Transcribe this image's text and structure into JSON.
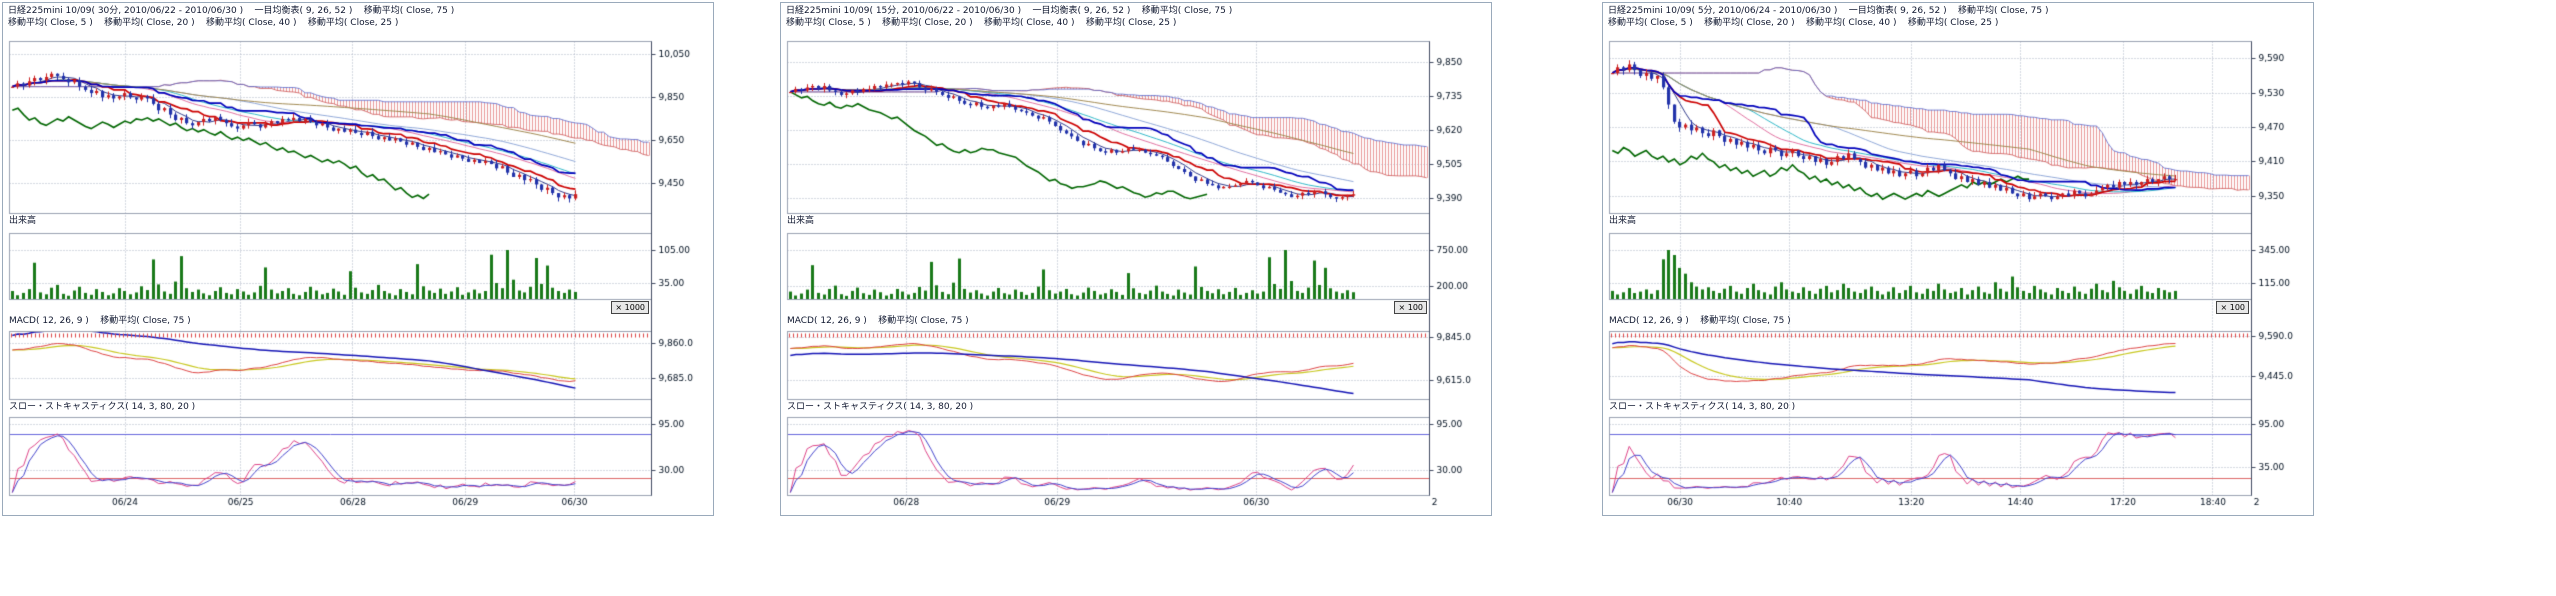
{
  "window": {
    "background": "#ffffff"
  },
  "colors": {
    "candle_up": "#cc2222",
    "candle_down": "#2233aa",
    "volume": "#1a7a1a",
    "cloud": "#e89898",
    "span_a": "#cc5555",
    "span_b": "#5566cc",
    "tenkan": "#cc0000",
    "kijun": "#0000bb",
    "chikou": "#006600",
    "ma5": "#303a8a",
    "ma20": "#e070a0",
    "ma40": "#90a8d8",
    "ma25": "#30b8c8",
    "ma75": "#a08850",
    "macd": "#dd4444",
    "signal": "#c8c820",
    "ma75_macd": "#1515b5",
    "stoch_k": "#dd4488",
    "stoch_d": "#4444cc",
    "ref_high": "#6666dd",
    "ref_low": "#dd6666",
    "grid": "#a8b0c0",
    "frame": "#98a0b0",
    "axis": "#404a60",
    "text": "#001020"
  },
  "chart_data": [
    {
      "type": "candlestick",
      "title": "日経225mini 10/09( 30分, 2010/06/22 - 2010/06/30 )    一目均衡表( 9, 26, 52 )    移動平均( Close, 75 )",
      "subtitle": "移動平均( Close, 5 )    移動平均( Close, 20 )    移動平均( Close, 40 )    移動平均( Close, 25 )",
      "volume_label": "出来高",
      "macd_label": "MACD( 12, 26, 9 )    移動平均( Close, 75 )",
      "stoch_label": "スロー・ストキャスティクス( 14, 3, 80, 20 )",
      "volume_unit": "× 1000",
      "ichimoku": [
        9,
        26,
        52
      ],
      "ma_periods": [
        5,
        20,
        40,
        25,
        75
      ],
      "macd_params": [
        12,
        26,
        9
      ],
      "stoch_params": [
        14,
        3,
        80,
        20
      ],
      "wick": 20,
      "price_axis": {
        "labels": [
          "10,050",
          "9,850",
          "9,650",
          "9,450"
        ],
        "values": [
          10050,
          9850,
          9650,
          9450
        ],
        "range": [
          9310,
          10110
        ]
      },
      "volume_axis": {
        "labels": [
          "105.00",
          "35.00"
        ],
        "values": [
          105,
          35
        ],
        "range": [
          0,
          140
        ]
      },
      "macd_axis": {
        "labels": [
          "9,860.0",
          "9,685.0"
        ],
        "values": [
          9860,
          9685
        ],
        "range": [
          9580,
          9920
        ]
      },
      "stoch_axis": {
        "labels": [
          "95.00",
          "30.00"
        ],
        "values": [
          95,
          30
        ]
      },
      "x_axis": {
        "labels": [
          {
            "text": "06/24",
            "f": 0.18
          },
          {
            "text": "06/25",
            "f": 0.36
          },
          {
            "text": "06/28",
            "f": 0.535
          },
          {
            "text": "06/29",
            "f": 0.71
          },
          {
            "text": "06/30",
            "f": 0.88
          }
        ]
      },
      "closes": [
        9900,
        9915,
        9905,
        9925,
        9940,
        9930,
        9945,
        9960,
        9950,
        9935,
        9920,
        9930,
        9900,
        9885,
        9870,
        9880,
        9850,
        9860,
        9845,
        9855,
        9870,
        9850,
        9840,
        9855,
        9845,
        9820,
        9790,
        9800,
        9770,
        9745,
        9755,
        9730,
        9720,
        9735,
        9750,
        9740,
        9760,
        9745,
        9730,
        9715,
        9705,
        9720,
        9735,
        9725,
        9710,
        9725,
        9740,
        9730,
        9750,
        9745,
        9755,
        9740,
        9750,
        9735,
        9720,
        9730,
        9710,
        9695,
        9705,
        9690,
        9700,
        9685,
        9675,
        9690,
        9670,
        9655,
        9665,
        9650,
        9660,
        9645,
        9630,
        9640,
        9620,
        9605,
        9615,
        9595,
        9600,
        9585,
        9570,
        9580,
        9565,
        9550,
        9560,
        9545,
        9555,
        9540,
        9520,
        9530,
        9500,
        9480,
        9490,
        9465,
        9470,
        9445,
        9420,
        9430,
        9405,
        9385,
        9395,
        9380,
        9400
      ],
      "volumes": [
        18,
        9,
        14,
        22,
        78,
        15,
        11,
        25,
        31,
        12,
        8,
        19,
        27,
        14,
        10,
        22,
        16,
        9,
        13,
        24,
        18,
        11,
        15,
        28,
        20,
        85,
        32,
        17,
        12,
        38,
        92,
        24,
        16,
        21,
        13,
        9,
        18,
        26,
        14,
        11,
        22,
        17,
        10,
        15,
        29,
        68,
        21,
        13,
        18,
        24,
        12,
        9,
        16,
        27,
        19,
        11,
        14,
        23,
        17,
        10,
        60,
        25,
        15,
        12,
        20,
        31,
        18,
        13,
        9,
        22,
        16,
        11,
        75,
        28,
        19,
        14,
        23,
        12,
        17,
        26,
        10,
        15,
        21,
        13,
        18,
        95,
        35,
        24,
        105,
        42,
        19,
        15,
        27,
        88,
        33,
        72,
        25,
        18,
        14,
        21,
        16
      ]
    },
    {
      "type": "candlestick",
      "title": "日経225mini 10/09( 15分, 2010/06/22 - 2010/06/30 )    一目均衡表( 9, 26, 52 )    移動平均( Close, 75 )",
      "subtitle": "移動平均( Close, 5 )    移動平均( Close, 20 )    移動平均( Close, 40 )    移動平均( Close, 25 )",
      "volume_label": "出来高",
      "macd_label": "MACD( 12, 26, 9 )    移動平均( Close, 75 )",
      "stoch_label": "スロー・ストキャスティクス( 14, 3, 80, 20 )",
      "volume_unit": "× 100",
      "ichimoku": [
        9,
        26,
        52
      ],
      "ma_periods": [
        5,
        20,
        40,
        25,
        75
      ],
      "macd_params": [
        12,
        26,
        9
      ],
      "stoch_params": [
        14,
        3,
        80,
        20
      ],
      "wick": 12,
      "price_axis": {
        "labels": [
          "9,850",
          "9,735",
          "9,620",
          "9,505",
          "9,390"
        ],
        "values": [
          9850,
          9735,
          9620,
          9505,
          9390
        ],
        "range": [
          9340,
          9920
        ]
      },
      "volume_axis": {
        "labels": [
          "750.00",
          "200.00"
        ],
        "values": [
          750,
          200
        ],
        "range": [
          0,
          1000
        ]
      },
      "macd_axis": {
        "labels": [
          "9,845.0",
          "9,615.0"
        ],
        "values": [
          9845,
          9615
        ],
        "range": [
          9510,
          9880
        ]
      },
      "stoch_axis": {
        "labels": [
          "95.00",
          "30.00"
        ],
        "values": [
          95,
          30
        ]
      },
      "x_axis": {
        "labels": [
          {
            "text": "06/28",
            "f": 0.185
          },
          {
            "text": "06/29",
            "f": 0.42
          },
          {
            "text": "06/30",
            "f": 0.73
          },
          {
            "text": "2",
            "f": 1.008
          }
        ]
      },
      "closes": [
        9750,
        9760,
        9755,
        9765,
        9770,
        9760,
        9770,
        9755,
        9750,
        9740,
        9745,
        9755,
        9750,
        9760,
        9760,
        9770,
        9765,
        9775,
        9775,
        9780,
        9775,
        9785,
        9780,
        9765,
        9755,
        9760,
        9750,
        9740,
        9730,
        9735,
        9720,
        9710,
        9705,
        9715,
        9700,
        9695,
        9705,
        9700,
        9710,
        9700,
        9690,
        9685,
        9680,
        9670,
        9660,
        9665,
        9650,
        9635,
        9620,
        9610,
        9600,
        9585,
        9570,
        9575,
        9560,
        9550,
        9545,
        9555,
        9545,
        9550,
        9560,
        9555,
        9555,
        9545,
        9540,
        9535,
        9530,
        9515,
        9500,
        9490,
        9480,
        9465,
        9450,
        9455,
        9440,
        9435,
        9425,
        9430,
        9430,
        9435,
        9440,
        9450,
        9445,
        9435,
        9425,
        9430,
        9420,
        9410,
        9405,
        9395,
        9400,
        9410,
        9405,
        9415,
        9415,
        9405,
        9395,
        9390,
        9395,
        9400,
        9405
      ],
      "volumes": [
        120,
        60,
        90,
        150,
        520,
        100,
        75,
        160,
        210,
        80,
        55,
        130,
        180,
        95,
        70,
        150,
        110,
        60,
        85,
        160,
        120,
        75,
        100,
        190,
        135,
        570,
        215,
        115,
        80,
        255,
        620,
        160,
        105,
        140,
        90,
        60,
        120,
        175,
        95,
        75,
        150,
        115,
        70,
        100,
        195,
        455,
        140,
        90,
        120,
        160,
        80,
        60,
        105,
        180,
        130,
        75,
        95,
        155,
        115,
        70,
        400,
        170,
        100,
        80,
        135,
        210,
        120,
        85,
        60,
        150,
        105,
        75,
        500,
        190,
        130,
        95,
        155,
        80,
        115,
        175,
        70,
        100,
        140,
        90,
        120,
        640,
        235,
        160,
        750,
        280,
        130,
        100,
        180,
        590,
        220,
        480,
        170,
        120,
        95,
        140,
        110
      ]
    },
    {
      "type": "candlestick",
      "title": "日経225mini 10/09( 5分, 2010/06/24 - 2010/06/30 )    一目均衡表( 9, 26, 52 )    移動平均( Close, 75 )",
      "subtitle": "移動平均( Close, 5 )    移動平均( Close, 20 )    移動平均( Close, 40 )    移動平均( Close, 25 )",
      "volume_label": "出来高",
      "macd_label": "MACD( 12, 26, 9 )    移動平均( Close, 75 )",
      "stoch_label": "スロー・ストキャスティクス( 14, 3, 80, 20 )",
      "volume_unit": "× 100",
      "ichimoku": [
        9,
        26,
        52
      ],
      "ma_periods": [
        5,
        20,
        40,
        25,
        75
      ],
      "macd_params": [
        12,
        26,
        9
      ],
      "stoch_params": [
        14,
        3,
        80,
        20
      ],
      "wick": 8,
      "price_axis": {
        "labels": [
          "9,590",
          "9,530",
          "9,470",
          "9,410",
          "9,350"
        ],
        "values": [
          9590,
          9530,
          9470,
          9410,
          9350
        ],
        "range": [
          9320,
          9620
        ]
      },
      "volume_axis": {
        "labels": [
          "345.00",
          "115.00"
        ],
        "values": [
          345,
          115
        ],
        "range": [
          0,
          460
        ]
      },
      "macd_axis": {
        "labels": [
          "9,590.0",
          "9,445.0"
        ],
        "values": [
          9590,
          9445
        ],
        "range": [
          9360,
          9610
        ]
      },
      "stoch_axis": {
        "labels": [
          "95.00",
          "35.00"
        ],
        "values": [
          95,
          35
        ]
      },
      "x_axis": {
        "labels": [
          {
            "text": "06/30",
            "f": 0.11
          },
          {
            "text": "10:40",
            "f": 0.28
          },
          {
            "text": "13:20",
            "f": 0.47
          },
          {
            "text": "14:40",
            "f": 0.64
          },
          {
            "text": "17:20",
            "f": 0.8
          },
          {
            "text": "18:40",
            "f": 0.94
          },
          {
            "text": "2",
            "f": 1.008
          }
        ]
      },
      "closes": [
        9565,
        9575,
        9570,
        9580,
        9570,
        9560,
        9565,
        9555,
        9560,
        9540,
        9510,
        9480,
        9470,
        9475,
        9465,
        9470,
        9460,
        9455,
        9465,
        9455,
        9445,
        9450,
        9440,
        9445,
        9435,
        9440,
        9430,
        9425,
        9435,
        9430,
        9420,
        9425,
        9430,
        9420,
        9415,
        9420,
        9410,
        9415,
        9405,
        9410,
        9420,
        9415,
        9425,
        9415,
        9410,
        9400,
        9405,
        9395,
        9400,
        9390,
        9395,
        9385,
        9390,
        9395,
        9385,
        9390,
        9400,
        9395,
        9405,
        9395,
        9390,
        9380,
        9385,
        9375,
        9380,
        9370,
        9375,
        9365,
        9370,
        9360,
        9365,
        9355,
        9350,
        9355,
        9345,
        9350,
        9355,
        9350,
        9345,
        9350,
        9355,
        9350,
        9360,
        9355,
        9350,
        9355,
        9360,
        9365,
        9370,
        9365,
        9375,
        9370,
        9375,
        9370,
        9375,
        9380,
        9375,
        9380,
        9385,
        9380,
        9380
      ],
      "volumes": [
        60,
        35,
        50,
        80,
        45,
        55,
        70,
        40,
        65,
        280,
        345,
        310,
        220,
        180,
        120,
        90,
        70,
        85,
        60,
        45,
        75,
        95,
        55,
        40,
        80,
        110,
        65,
        50,
        35,
        90,
        120,
        70,
        55,
        45,
        85,
        60,
        40,
        75,
        95,
        50,
        65,
        110,
        80,
        55,
        45,
        70,
        90,
        60,
        35,
        55,
        85,
        45,
        65,
        95,
        50,
        40,
        75,
        60,
        110,
        70,
        45,
        55,
        80,
        35,
        65,
        90,
        50,
        40,
        120,
        75,
        55,
        160,
        85,
        60,
        45,
        95,
        70,
        50,
        35,
        80,
        60,
        45,
        90,
        55,
        40,
        75,
        110,
        65,
        50,
        130,
        85,
        60,
        40,
        70,
        95,
        55,
        45,
        80,
        65,
        50,
        60
      ]
    }
  ]
}
